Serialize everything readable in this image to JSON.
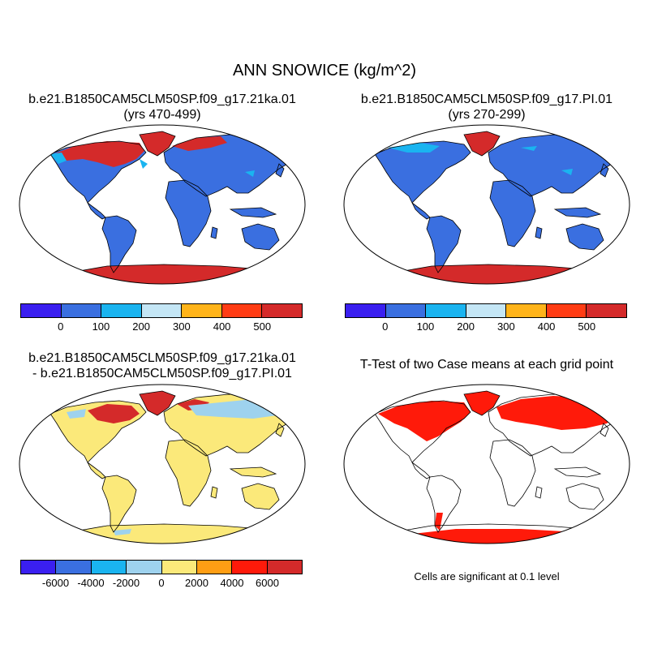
{
  "title": "ANN SNOWICE (kg/m^2)",
  "panels": [
    {
      "line1": "b.e21.B1850CAM5CLM50SP.f09_g17.21ka.01",
      "line2": "(yrs 470-499)"
    },
    {
      "line1": "b.e21.B1850CAM5CLM50SP.f09_g17.PI.01",
      "line2": "(yrs 270-299)"
    },
    {
      "line1": "b.e21.B1850CAM5CLM50SP.f09_g17.21ka.01",
      "line2": "- b.e21.B1850CAM5CLM50SP.f09_g17.PI.01"
    },
    {
      "line1": "T-Test of two Case means at each grid point",
      "line2": ""
    }
  ],
  "colorbar_abs": {
    "colors": [
      "#3a1ff0",
      "#3a6fe0",
      "#1ab4f0",
      "#c4e6f5",
      "#ffb41a",
      "#ff3c14",
      "#d42a2a"
    ],
    "labels": [
      "0",
      "100",
      "200",
      "300",
      "400",
      "500"
    ]
  },
  "colorbar_diff": {
    "colors": [
      "#3a1ff0",
      "#3a6fe0",
      "#1ab4f0",
      "#9ed2ee",
      "#fbe97a",
      "#ff9e14",
      "#ff1a0a",
      "#d42a2a"
    ],
    "labels": [
      "-6000",
      "-4000",
      "-2000",
      "0",
      "2000",
      "4000",
      "6000"
    ]
  },
  "significance_note": "Cells are significant at 0.1 level",
  "colors": {
    "land_abs": "#3a6fe0",
    "ice_abs": "#d42a2a",
    "light_abs": "#1ab4f0",
    "land_diff": "#fbe97a",
    "ice_diff": "#d42a2a",
    "light_diff": "#9ed2ee",
    "significant": "#ff1a0a"
  }
}
